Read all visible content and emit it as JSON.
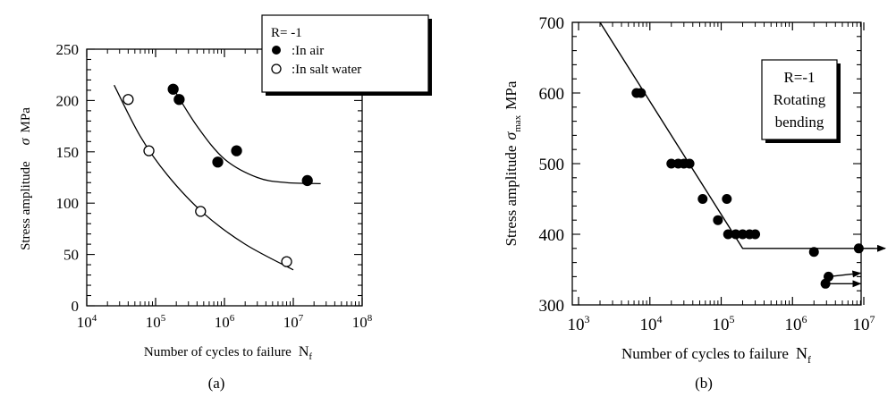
{
  "chart_data": [
    {
      "panel": "(a)",
      "type": "scatter",
      "xscale": "log",
      "xlim": [
        10000,
        100000000
      ],
      "ylim": [
        0,
        250
      ],
      "grid": false,
      "x_ticks": [
        10000,
        100000,
        1000000,
        10000000,
        100000000
      ],
      "y_ticks": [
        "0",
        "50",
        "100",
        "150",
        "200",
        "250"
      ],
      "xlabel": "Number of cycles to failure",
      "xlabel_symbol": "N",
      "xlabel_sub": "f",
      "ylabel": "Stress amplitude",
      "ylabel_symbol": "σ",
      "ylabel_unit": "MPa",
      "legend": {
        "placement": "top-right",
        "title": "R= -1",
        "entries": [
          ":In air",
          ":In salt water"
        ]
      },
      "series": [
        {
          "name": ":In air",
          "marker": "filled-circle",
          "x": [
            180000,
            220000,
            800000,
            1500000,
            16000000
          ],
          "y": [
            211,
            201,
            140,
            151,
            122
          ],
          "trend": {
            "x": [
              180000,
              400000,
              1000000,
              3000000,
              8000000,
              25000000
            ],
            "y": [
              212,
              175,
              143,
              125,
              120,
              119
            ]
          }
        },
        {
          "name": ":In salt water",
          "marker": "open-circle",
          "x": [
            40000,
            80000,
            450000,
            8000000
          ],
          "y": [
            201,
            151,
            92,
            43
          ],
          "trend": {
            "x": [
              25000,
              60000,
              150000,
              500000,
              2000000,
              10000000
            ],
            "y": [
              215,
              165,
              127,
              90,
              60,
              35
            ]
          }
        }
      ]
    },
    {
      "panel": "(b)",
      "type": "scatter",
      "xscale": "log",
      "xlim": [
        1000,
        10000000
      ],
      "ylim": [
        300,
        700
      ],
      "grid": false,
      "x_ticks": [
        1000,
        10000,
        100000,
        1000000,
        10000000
      ],
      "y_ticks": [
        "300",
        "400",
        "500",
        "600",
        "700"
      ],
      "xlabel": "Number of cycles to failure",
      "xlabel_symbol": "N",
      "xlabel_sub": "f",
      "ylabel": "Stress amplitude",
      "ylabel_symbol": "σ",
      "ylabel_sub": "max",
      "ylabel_unit": "MPa",
      "annotation": {
        "placement": "top-right",
        "lines": [
          "R=-1",
          "Rotating",
          "bending"
        ]
      },
      "series": [
        {
          "marker": "filled-circle",
          "x": [
            6500,
            7500,
            20000,
            25000,
            30000,
            36000,
            55000,
            90000,
            120000,
            125000,
            160000,
            200000,
            250000,
            300000,
            2000000,
            3200000,
            2900000,
            8500000
          ],
          "y": [
            600,
            600,
            500,
            500,
            500,
            500,
            450,
            420,
            450,
            400,
            400,
            400,
            400,
            400,
            375,
            340,
            330,
            380
          ],
          "runouts": [
            {
              "from": [
                8500000,
                380
              ],
              "to": [
                20000000,
                380
              ]
            },
            {
              "from": [
                3200000,
                340
              ],
              "to": [
                9000000,
                345
              ]
            },
            {
              "from": [
                2900000,
                330
              ],
              "to": [
                9000000,
                330
              ]
            }
          ]
        }
      ],
      "sn_curve": {
        "x": [
          2000,
          200000,
          200000,
          14000000
        ],
        "y": [
          700,
          380,
          380,
          380
        ]
      }
    }
  ],
  "captions": [
    "(a)",
    "(b)"
  ]
}
